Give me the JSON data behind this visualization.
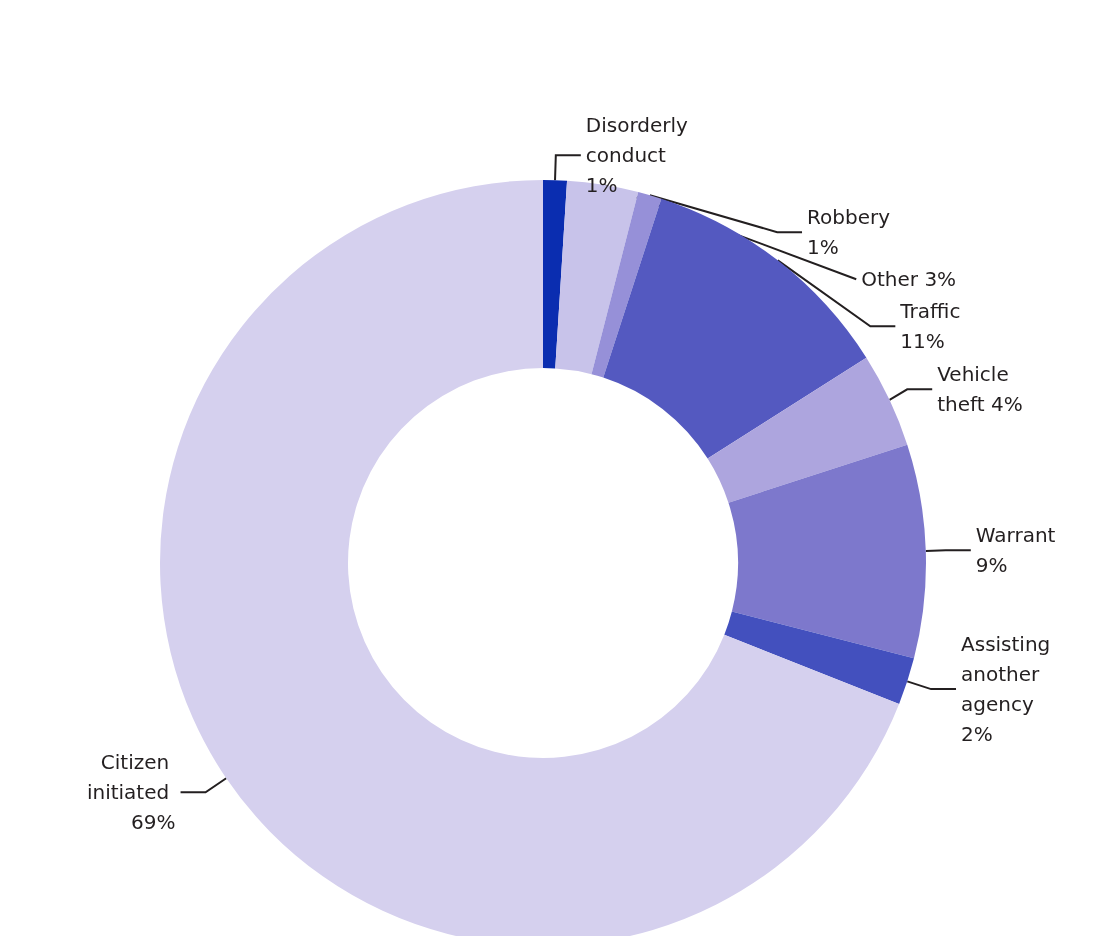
{
  "chart_data": {
    "type": "donut",
    "categories": [
      "Disorderly conduct",
      "Other",
      "Robbery",
      "Traffic",
      "Vehicle theft",
      "Warrant",
      "Assisting another agency",
      "Citizen initiated"
    ],
    "values": [
      1,
      3,
      1,
      11,
      4,
      9,
      2,
      69
    ],
    "value_labels": [
      "1%",
      "3%",
      "1%",
      "11%",
      "4%",
      "9%",
      "2%",
      "69%"
    ],
    "colors": [
      "#0a2db0",
      "#c8c3ea",
      "#9690d8",
      "#5459c0",
      "#ada5de",
      "#7d78cc",
      "#4350be",
      "#d5d0ee"
    ],
    "legend": false
  }
}
